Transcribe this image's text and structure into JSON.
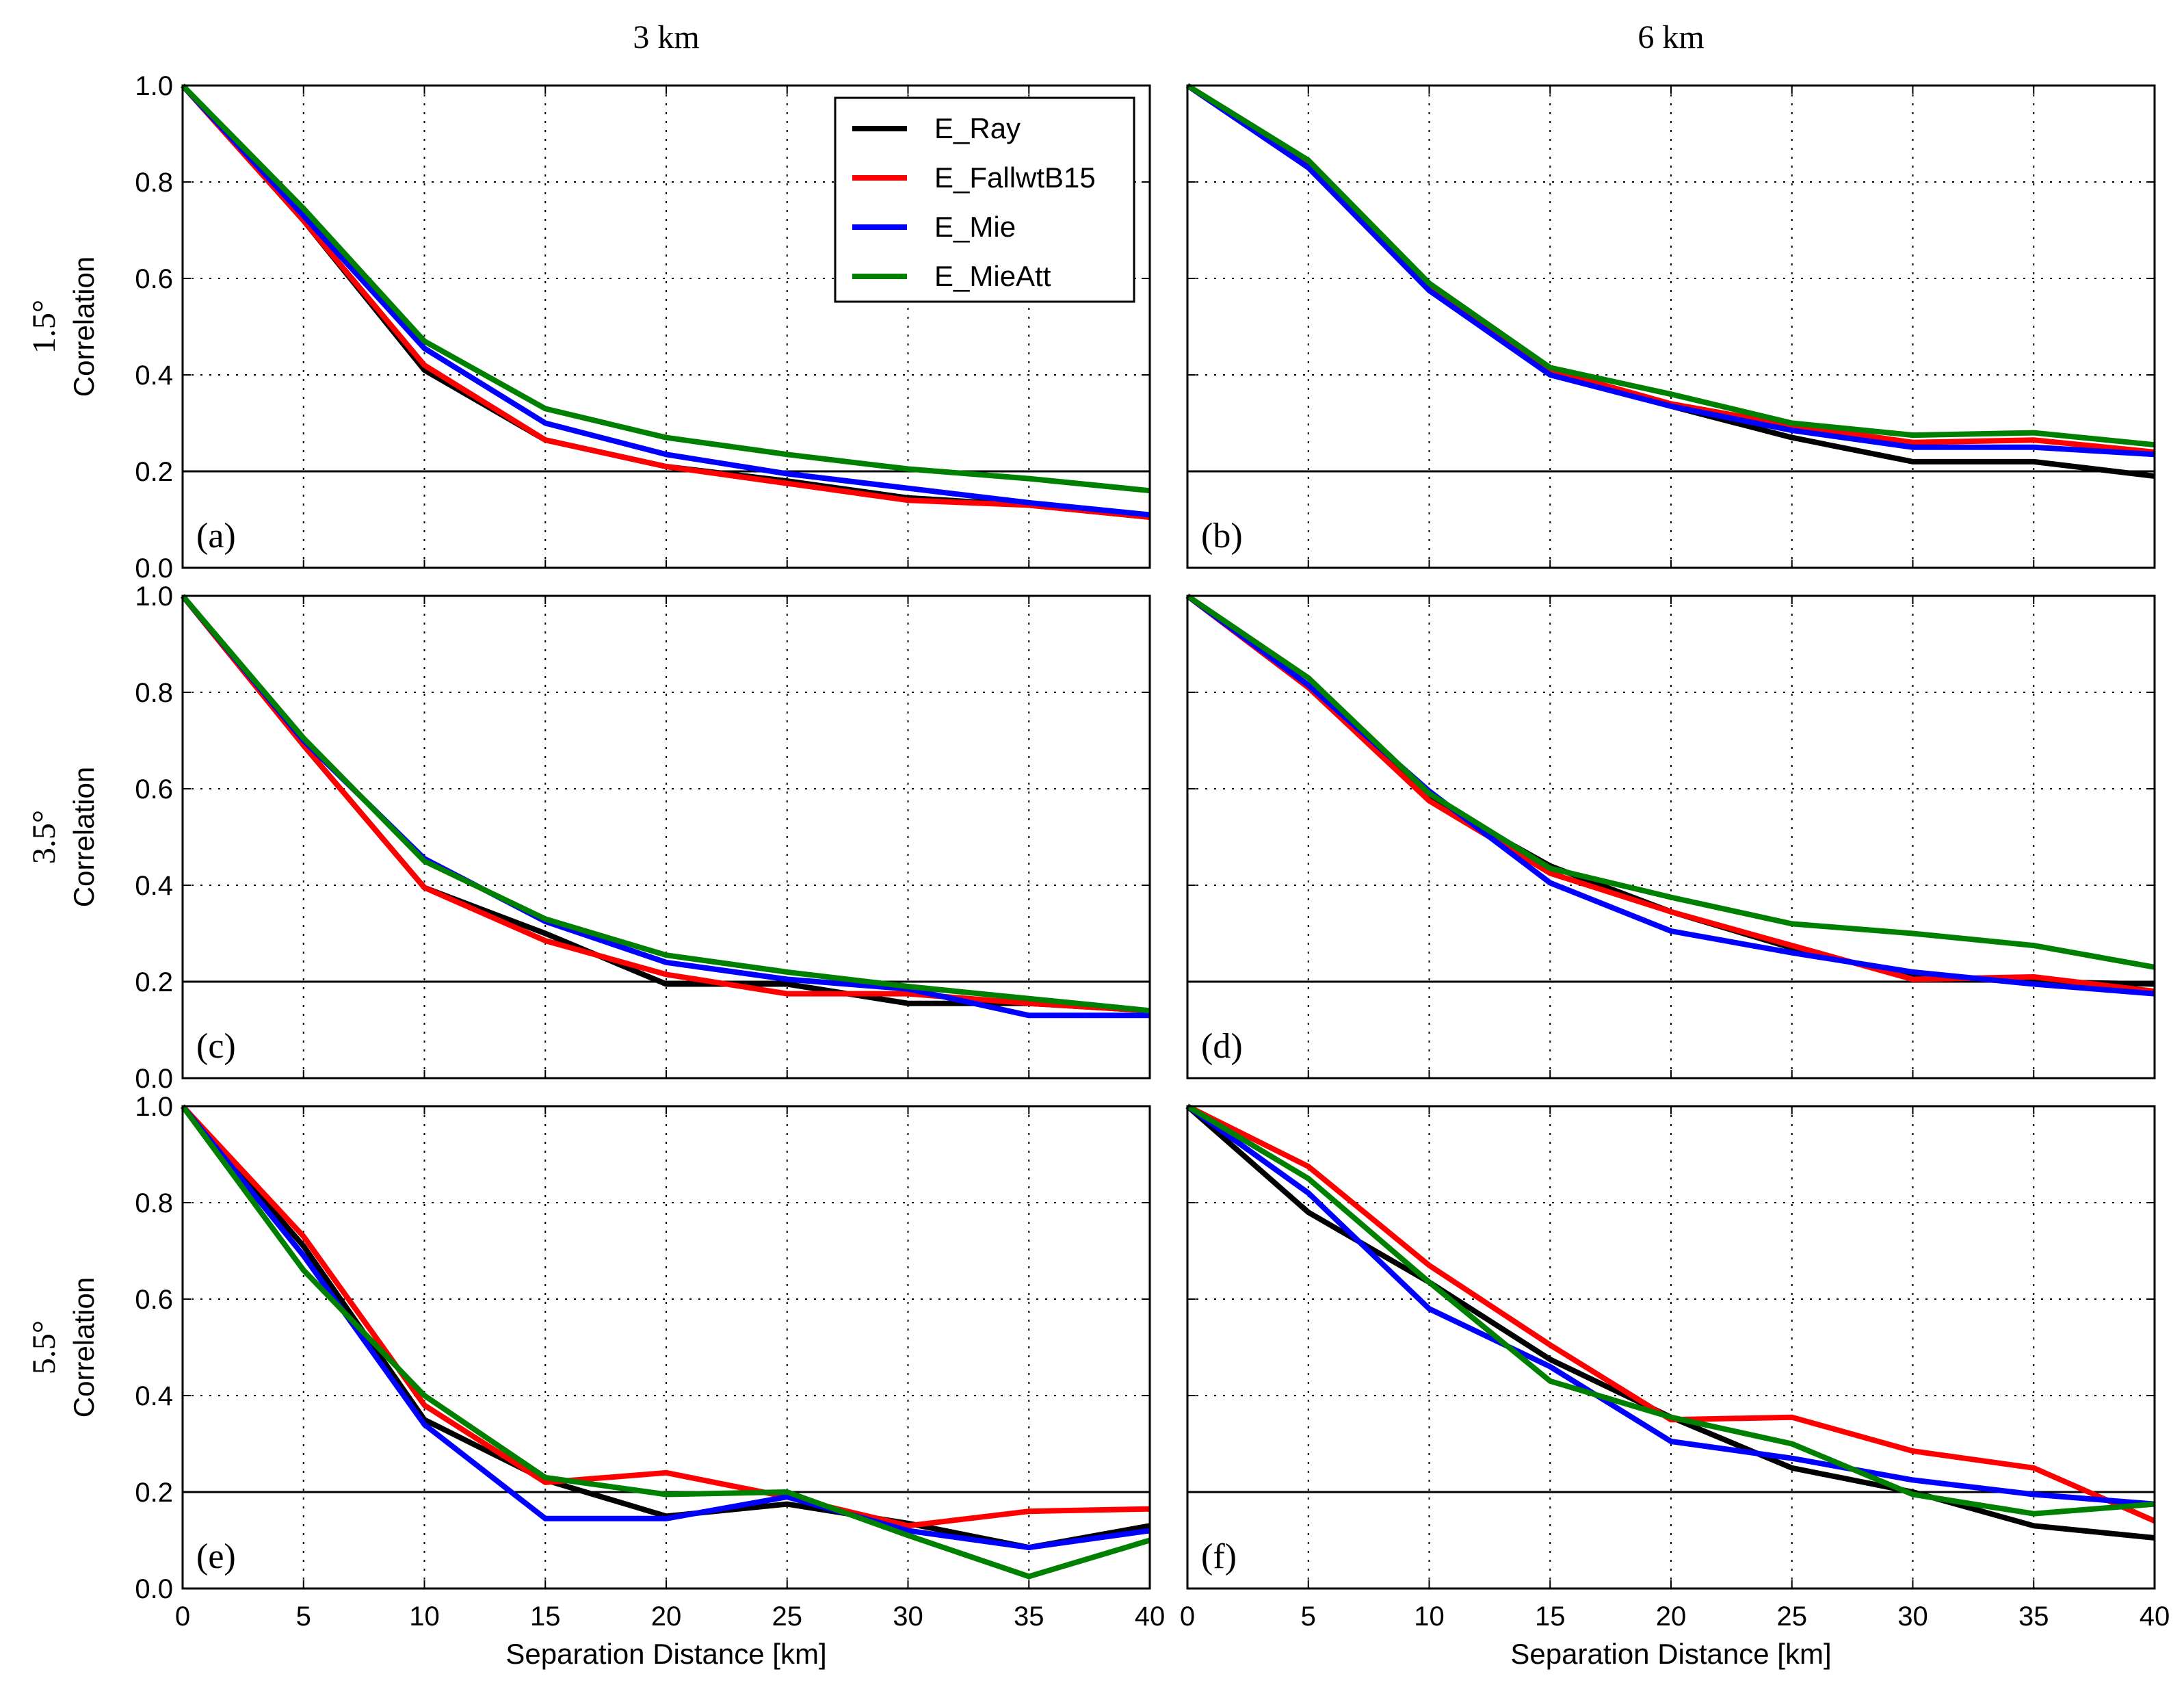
{
  "chart_data": {
    "type": "line",
    "layout": "3 rows x 2 columns small multiples",
    "column_headers": [
      "3 km",
      "6 km"
    ],
    "row_headers": [
      "1.5°",
      "3.5°",
      "5.5°"
    ],
    "xlabel": "Separation Distance [km]",
    "ylabel": "Correlation",
    "xlim": [
      0,
      40
    ],
    "ylim": [
      0,
      1
    ],
    "x_ticks": [
      "0",
      "5",
      "10",
      "15",
      "20",
      "25",
      "30",
      "35",
      "40"
    ],
    "y_ticks": [
      "0.0",
      "0.2",
      "0.4",
      "0.6",
      "0.8",
      "1.0"
    ],
    "reference_line_y": 0.2,
    "grid": true,
    "x": [
      0,
      5,
      10,
      15,
      20,
      25,
      30,
      35,
      40
    ],
    "legend": {
      "placement": "top-right of panel (a)",
      "entries": [
        "E_Ray",
        "E_FallwtB15",
        "E_Mie",
        "E_MieAtt"
      ]
    },
    "colors": {
      "E_Ray": "#000000",
      "E_FallwtB15": "#ff0000",
      "E_Mie": "#0000ff",
      "E_MieAtt": "#008000"
    },
    "panels": [
      {
        "label": "(a)",
        "row": 0,
        "col": 0,
        "series": [
          {
            "name": "E_Ray",
            "values": [
              1.0,
              0.72,
              0.41,
              0.265,
              0.21,
              0.18,
              0.145,
              0.13,
              0.105
            ]
          },
          {
            "name": "E_FallwtB15",
            "values": [
              1.0,
              0.72,
              0.42,
              0.265,
              0.21,
              0.175,
              0.14,
              0.13,
              0.105
            ]
          },
          {
            "name": "E_Mie",
            "values": [
              1.0,
              0.73,
              0.455,
              0.3,
              0.235,
              0.195,
              0.165,
              0.135,
              0.11
            ]
          },
          {
            "name": "E_MieAtt",
            "values": [
              1.0,
              0.745,
              0.47,
              0.33,
              0.27,
              0.235,
              0.205,
              0.185,
              0.16
            ]
          }
        ]
      },
      {
        "label": "(b)",
        "row": 0,
        "col": 1,
        "series": [
          {
            "name": "E_Ray",
            "values": [
              1.0,
              0.83,
              0.575,
              0.405,
              0.335,
              0.27,
              0.22,
              0.22,
              0.19
            ]
          },
          {
            "name": "E_FallwtB15",
            "values": [
              1.0,
              0.835,
              0.58,
              0.41,
              0.34,
              0.295,
              0.26,
              0.265,
              0.24
            ]
          },
          {
            "name": "E_Mie",
            "values": [
              1.0,
              0.83,
              0.575,
              0.4,
              0.335,
              0.285,
              0.25,
              0.25,
              0.235
            ]
          },
          {
            "name": "E_MieAtt",
            "values": [
              1.0,
              0.845,
              0.59,
              0.415,
              0.36,
              0.3,
              0.275,
              0.28,
              0.255
            ]
          }
        ]
      },
      {
        "label": "(c)",
        "row": 1,
        "col": 0,
        "series": [
          {
            "name": "E_Ray",
            "values": [
              1.0,
              0.69,
              0.395,
              0.3,
              0.195,
              0.195,
              0.155,
              0.155,
              0.14
            ]
          },
          {
            "name": "E_FallwtB15",
            "values": [
              1.0,
              0.69,
              0.395,
              0.285,
              0.215,
              0.175,
              0.175,
              0.155,
              0.14
            ]
          },
          {
            "name": "E_Mie",
            "values": [
              1.0,
              0.7,
              0.455,
              0.325,
              0.24,
              0.205,
              0.185,
              0.13,
              0.13
            ]
          },
          {
            "name": "E_MieAtt",
            "values": [
              1.0,
              0.705,
              0.45,
              0.33,
              0.255,
              0.22,
              0.19,
              0.165,
              0.14
            ]
          }
        ]
      },
      {
        "label": "(d)",
        "row": 1,
        "col": 1,
        "series": [
          {
            "name": "E_Ray",
            "values": [
              1.0,
              0.81,
              0.58,
              0.44,
              0.345,
              0.27,
              0.21,
              0.2,
              0.195
            ]
          },
          {
            "name": "E_FallwtB15",
            "values": [
              1.0,
              0.81,
              0.575,
              0.425,
              0.345,
              0.275,
              0.205,
              0.21,
              0.18
            ]
          },
          {
            "name": "E_Mie",
            "values": [
              1.0,
              0.815,
              0.595,
              0.405,
              0.305,
              0.26,
              0.22,
              0.195,
              0.175
            ]
          },
          {
            "name": "E_MieAtt",
            "values": [
              1.0,
              0.83,
              0.59,
              0.435,
              0.375,
              0.32,
              0.3,
              0.275,
              0.23
            ]
          }
        ]
      },
      {
        "label": "(e)",
        "row": 2,
        "col": 0,
        "series": [
          {
            "name": "E_Ray",
            "values": [
              1.0,
              0.71,
              0.35,
              0.225,
              0.15,
              0.175,
              0.135,
              0.085,
              0.13
            ]
          },
          {
            "name": "E_FallwtB15",
            "values": [
              1.0,
              0.73,
              0.38,
              0.22,
              0.24,
              0.19,
              0.13,
              0.16,
              0.165
            ]
          },
          {
            "name": "E_Mie",
            "values": [
              1.0,
              0.69,
              0.34,
              0.145,
              0.145,
              0.19,
              0.12,
              0.085,
              0.12
            ]
          },
          {
            "name": "E_MieAtt",
            "values": [
              1.0,
              0.66,
              0.4,
              0.23,
              0.195,
              0.2,
              0.11,
              0.025,
              0.1
            ]
          }
        ]
      },
      {
        "label": "(f)",
        "row": 2,
        "col": 1,
        "series": [
          {
            "name": "E_Ray",
            "values": [
              1.0,
              0.78,
              0.635,
              0.475,
              0.355,
              0.25,
              0.2,
              0.13,
              0.105
            ]
          },
          {
            "name": "E_FallwtB15",
            "values": [
              1.0,
              0.875,
              0.67,
              0.505,
              0.35,
              0.355,
              0.285,
              0.25,
              0.14
            ]
          },
          {
            "name": "E_Mie",
            "values": [
              1.0,
              0.82,
              0.58,
              0.46,
              0.305,
              0.27,
              0.225,
              0.195,
              0.175
            ]
          },
          {
            "name": "E_MieAtt",
            "values": [
              1.0,
              0.85,
              0.635,
              0.43,
              0.355,
              0.3,
              0.195,
              0.155,
              0.175
            ]
          }
        ]
      }
    ]
  }
}
